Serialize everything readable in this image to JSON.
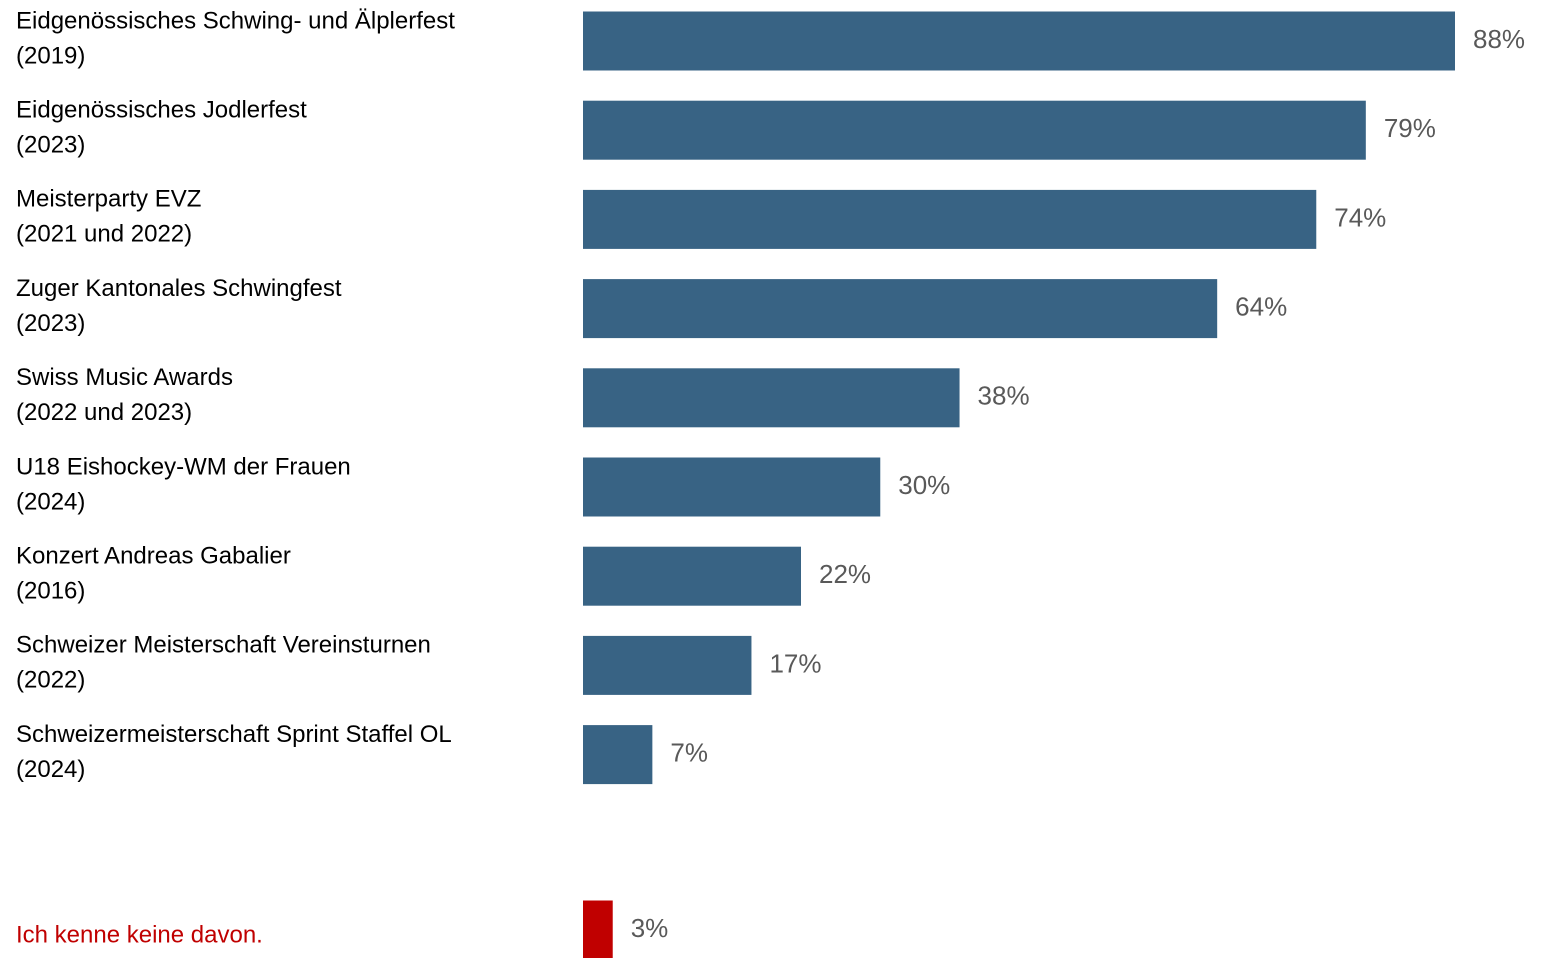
{
  "chart_data": {
    "type": "hbar",
    "categories": [
      [
        "Eidgenössisches Schwing- und Älplerfest",
        "(2019)"
      ],
      [
        "Eidgenössisches Jodlerfest",
        "(2023)"
      ],
      [
        "Meisterparty EVZ",
        "(2021 und 2022)"
      ],
      [
        "Zuger Kantonales Schwingfest",
        "(2023)"
      ],
      [
        "Swiss Music Awards",
        "(2022 und 2023)"
      ],
      [
        "U18 Eishockey-WM der Frauen",
        "(2024)"
      ],
      [
        "Konzert Andreas Gabalier",
        "(2016)"
      ],
      [
        "Schweizer Meisterschaft Vereinsturnen",
        "(2022)"
      ],
      [
        "Schweizermeisterschaft Sprint Staffel OL",
        "(2024)"
      ],
      [
        "Ich kenne keine davon."
      ]
    ],
    "values": [
      88,
      79,
      74,
      64,
      38,
      30,
      22,
      17,
      7,
      3
    ],
    "value_labels": [
      "88%",
      "79%",
      "74%",
      "64%",
      "38%",
      "30%",
      "22%",
      "17%",
      "7%",
      "3%"
    ],
    "colors": [
      "#386384",
      "#386384",
      "#386384",
      "#386384",
      "#386384",
      "#386384",
      "#386384",
      "#386384",
      "#386384",
      "#c00000"
    ]
  }
}
